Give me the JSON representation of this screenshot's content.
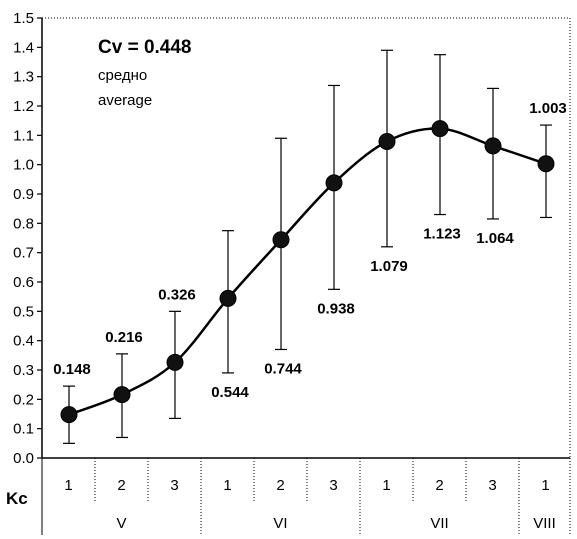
{
  "chart_data": {
    "type": "line",
    "title": "",
    "xlabel": "Kc",
    "ylabel": "",
    "ylim": [
      0.0,
      1.5
    ],
    "yticks": [
      "0.0",
      "0.1",
      "0.2",
      "0.3",
      "0.4",
      "0.5",
      "0.6",
      "0.7",
      "0.8",
      "0.9",
      "1.0",
      "1.1",
      "1.2",
      "1.3",
      "1.4",
      "1.5"
    ],
    "categories": [
      "1",
      "2",
      "3",
      "1",
      "2",
      "3",
      "1",
      "2",
      "3",
      "1"
    ],
    "groups": [
      {
        "label": "V",
        "span": 3
      },
      {
        "label": "VI",
        "span": 3
      },
      {
        "label": "VII",
        "span": 3
      },
      {
        "label": "VIII",
        "span": 1
      }
    ],
    "series": [
      {
        "values": [
          0.148,
          0.216,
          0.326,
          0.544,
          0.744,
          0.938,
          1.079,
          1.123,
          1.064,
          1.003
        ],
        "error_low": [
          0.05,
          0.07,
          0.135,
          0.29,
          0.37,
          0.575,
          0.72,
          0.83,
          0.815,
          0.82
        ],
        "error_high": [
          0.245,
          0.355,
          0.5,
          0.775,
          1.09,
          1.27,
          1.39,
          1.375,
          1.26,
          1.135
        ],
        "point_labels": [
          "0.148",
          "0.216",
          "0.326",
          "0.544",
          "0.744",
          "0.938",
          "1.079",
          "1.123",
          "1.064",
          "1.003"
        ]
      }
    ],
    "annotation": {
      "title": "Cv = 0.448",
      "line1": "средно",
      "line2": "average"
    },
    "grid": false
  }
}
